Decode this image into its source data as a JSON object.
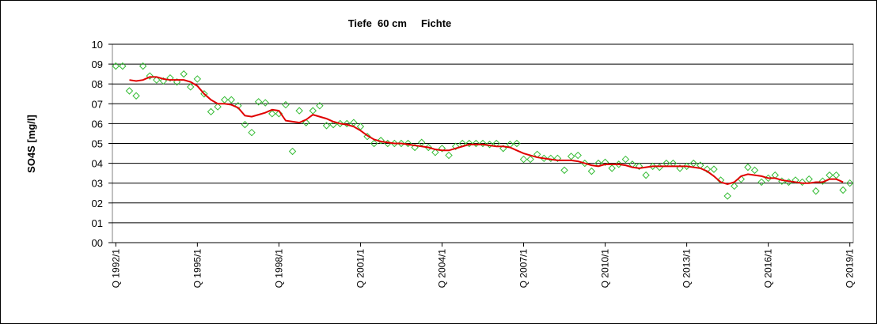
{
  "chart_data": {
    "type": "line",
    "title": "Tiefe  60 cm     Fichte",
    "y_label": "SO4S [mg/l]",
    "categories": [
      "Q 1992/1",
      null,
      null,
      null,
      null,
      null,
      null,
      null,
      null,
      null,
      null,
      null,
      "Q 1995/1",
      null,
      null,
      null,
      null,
      null,
      null,
      null,
      null,
      null,
      null,
      null,
      "Q 1998/1",
      null,
      null,
      null,
      null,
      null,
      null,
      null,
      null,
      null,
      null,
      null,
      "Q 2001/1",
      null,
      null,
      null,
      null,
      null,
      null,
      null,
      null,
      null,
      null,
      null,
      "Q 2004/1",
      null,
      null,
      null,
      null,
      null,
      null,
      null,
      null,
      null,
      null,
      null,
      "Q 2007/1",
      null,
      null,
      null,
      null,
      null,
      null,
      null,
      null,
      null,
      null,
      null,
      "Q 2010/1",
      null,
      null,
      null,
      null,
      null,
      null,
      null,
      null,
      null,
      null,
      null,
      "Q 2013/1",
      null,
      null,
      null,
      null,
      null,
      null,
      null,
      null,
      null,
      null,
      null,
      "Q 2016/1",
      null,
      null,
      null,
      null,
      null,
      null,
      null,
      null,
      null,
      null,
      null,
      "Q 2019/1"
    ],
    "series": [
      {
        "style": "markers",
        "color": "#33bb33",
        "values": [
          8.9,
          8.9,
          7.65,
          7.4,
          8.9,
          8.4,
          8.2,
          8.15,
          8.3,
          8.1,
          8.5,
          7.85,
          8.25,
          7.5,
          6.6,
          6.85,
          7.2,
          7.2,
          6.9,
          5.95,
          5.55,
          7.1,
          7.05,
          6.5,
          6.5,
          6.95,
          4.6,
          6.65,
          6.05,
          6.65,
          6.9,
          5.9,
          5.95,
          6.0,
          6.0,
          6.05,
          5.85,
          5.35,
          5.0,
          5.15,
          5.0,
          5.0,
          5.0,
          5.0,
          4.8,
          5.05,
          4.8,
          4.55,
          4.75,
          4.4,
          4.85,
          5.0,
          5.0,
          5.0,
          5.0,
          4.95,
          5.0,
          4.75,
          4.95,
          5.0,
          4.2,
          4.2,
          4.45,
          4.25,
          4.25,
          4.25,
          3.65,
          4.35,
          4.4,
          4.0,
          3.6,
          4.0,
          4.05,
          3.75,
          3.95,
          4.2,
          3.95,
          3.85,
          3.4,
          3.85,
          3.8,
          4.0,
          4.0,
          3.75,
          3.85,
          4.0,
          3.9,
          3.7,
          3.7,
          3.15,
          2.35,
          2.85,
          3.2,
          3.8,
          3.65,
          3.05,
          3.25,
          3.4,
          3.1,
          3.05,
          3.15,
          3.05,
          3.2,
          2.6,
          3.1,
          3.4,
          3.4,
          2.65,
          3.0
        ]
      },
      {
        "style": "line",
        "color": "#e00000",
        "values": [
          null,
          null,
          8.2,
          8.15,
          8.2,
          8.35,
          8.35,
          8.25,
          8.2,
          8.2,
          8.2,
          8.1,
          7.9,
          7.5,
          7.2,
          7.0,
          7.0,
          6.95,
          6.8,
          6.4,
          6.35,
          6.45,
          6.55,
          6.7,
          6.65,
          6.15,
          6.1,
          6.05,
          6.2,
          6.45,
          6.35,
          6.25,
          6.1,
          6.0,
          5.95,
          5.85,
          5.65,
          5.4,
          5.2,
          5.1,
          5.05,
          5.0,
          5.0,
          4.95,
          4.9,
          4.85,
          4.8,
          4.7,
          4.65,
          4.65,
          4.75,
          4.85,
          4.95,
          4.95,
          4.95,
          4.9,
          4.85,
          4.85,
          4.8,
          4.65,
          4.5,
          4.4,
          4.3,
          4.25,
          4.2,
          4.15,
          4.15,
          4.15,
          4.1,
          4.0,
          3.9,
          3.85,
          3.95,
          3.95,
          3.95,
          3.9,
          3.8,
          3.75,
          3.8,
          3.85,
          3.85,
          3.85,
          3.85,
          3.85,
          3.85,
          3.8,
          3.75,
          3.6,
          3.35,
          3.05,
          2.95,
          3.05,
          3.35,
          3.45,
          3.4,
          3.35,
          3.25,
          3.25,
          3.15,
          3.1,
          3.05,
          3.0,
          3.0,
          3.05,
          3.05,
          3.2,
          3.2,
          3.05,
          null
        ]
      }
    ],
    "ylim": [
      0,
      10
    ],
    "yticks": [
      {
        "value": 0,
        "label": "00"
      },
      {
        "value": 1,
        "label": "01"
      },
      {
        "value": 2,
        "label": "02"
      },
      {
        "value": 3,
        "label": "03"
      },
      {
        "value": 4,
        "label": "04"
      },
      {
        "value": 5,
        "label": "05"
      },
      {
        "value": 6,
        "label": "06"
      },
      {
        "value": 7,
        "label": "07"
      },
      {
        "value": 8,
        "label": "08"
      },
      {
        "value": 9,
        "label": "09"
      },
      10
    ],
    "grid": true
  }
}
